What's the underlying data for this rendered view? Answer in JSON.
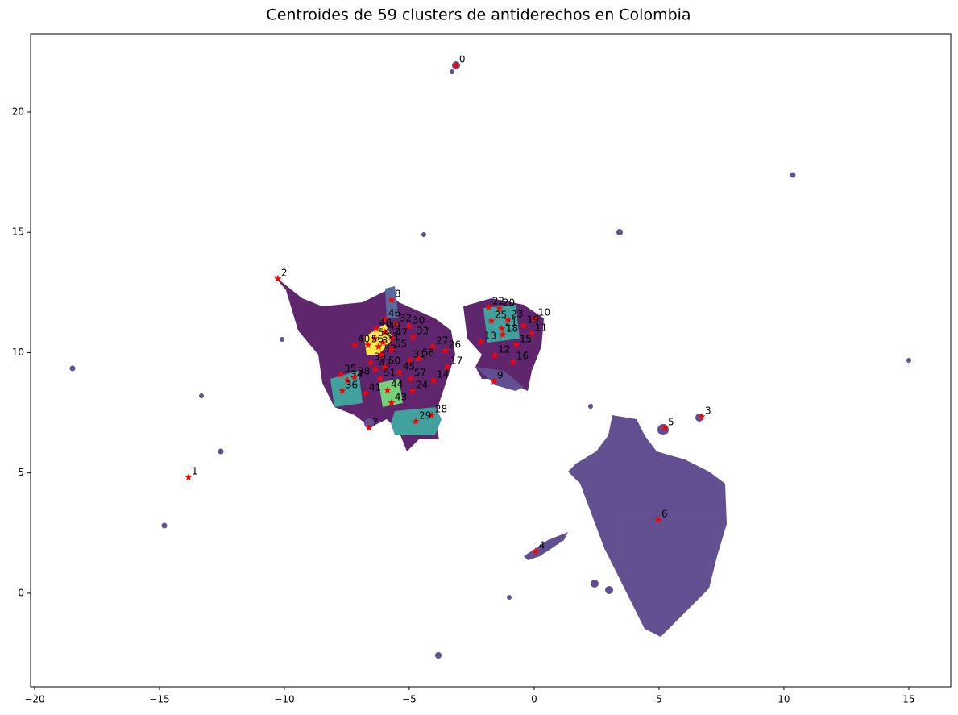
{
  "chart_data": {
    "type": "scatter",
    "title": "Centroides de 59 clusters de antiderechos en Colombia",
    "xlim": [
      -20.16,
      16.68
    ],
    "ylim": [
      -3.89,
      23.25
    ],
    "xticks": [
      {
        "value": -20,
        "label": "−20"
      },
      {
        "value": -15,
        "label": "−15"
      },
      {
        "value": -10,
        "label": "−10"
      },
      {
        "value": -5,
        "label": "−5"
      },
      0,
      5,
      10,
      15
    ],
    "yticks": [
      {
        "value": 0,
        "label": "0"
      },
      5,
      10,
      15,
      20
    ],
    "grid": false,
    "series": [
      {
        "color": "#ff0000",
        "marker": "star",
        "labels": [
          "0",
          "1",
          "2",
          "3",
          "4",
          "5",
          "6",
          "7",
          "8",
          "9",
          "10",
          "11",
          "12",
          "13",
          "14",
          "15",
          "16",
          "17",
          "18",
          "19",
          "20",
          "21",
          "22",
          "23",
          "24",
          "25",
          "26",
          "27",
          "28",
          "29",
          "30",
          "31",
          "32",
          "33",
          "34",
          "35",
          "36",
          "37",
          "38",
          "39",
          "40",
          "41",
          "42",
          "43",
          "44",
          "45",
          "46",
          "47",
          "48",
          "49",
          "50",
          "51",
          "52",
          "53",
          "54",
          "55",
          "56",
          "57",
          "58"
        ],
        "x": [
          -3.13,
          -13.84,
          -10.26,
          6.71,
          0.06,
          5.23,
          4.97,
          -6.61,
          -5.71,
          -1.61,
          0.03,
          -0.1,
          -1.58,
          -2.13,
          -4.03,
          -0.71,
          -0.84,
          -3.48,
          -1.26,
          -0.42,
          -1.39,
          -1.3,
          -1.81,
          -1.06,
          -4.87,
          -1.71,
          -3.55,
          -4.06,
          -4.1,
          -4.74,
          -5.0,
          -4.97,
          -5.52,
          -4.84,
          -7.48,
          -7.74,
          -7.68,
          -6.23,
          -7.19,
          -6.55,
          -7.19,
          -6.74,
          -6.35,
          -5.71,
          -5.87,
          -5.39,
          -5.97,
          -5.68,
          -6.32,
          -5.97,
          -5.97,
          -6.16,
          -6.13,
          -6.06,
          -6.39,
          -5.71,
          -6.65,
          -4.94,
          -4.61
        ],
        "values": [
          21.94,
          4.82,
          13.07,
          7.34,
          1.74,
          6.87,
          3.05,
          6.87,
          12.19,
          8.81,
          11.42,
          10.79,
          9.88,
          10.45,
          8.84,
          10.32,
          9.61,
          9.41,
          10.75,
          11.12,
          11.83,
          11.0,
          11.89,
          11.36,
          8.41,
          11.32,
          10.08,
          10.25,
          7.4,
          7.14,
          11.09,
          9.68,
          11.19,
          10.65,
          8.84,
          9.08,
          8.41,
          10.25,
          8.98,
          9.58,
          10.32,
          8.31,
          9.31,
          7.91,
          8.44,
          9.18,
          11.39,
          10.59,
          10.99,
          10.85,
          9.41,
          8.91,
          9.92,
          10.42,
          10.59,
          10.12,
          10.32,
          8.91,
          9.75
        ]
      }
    ]
  }
}
